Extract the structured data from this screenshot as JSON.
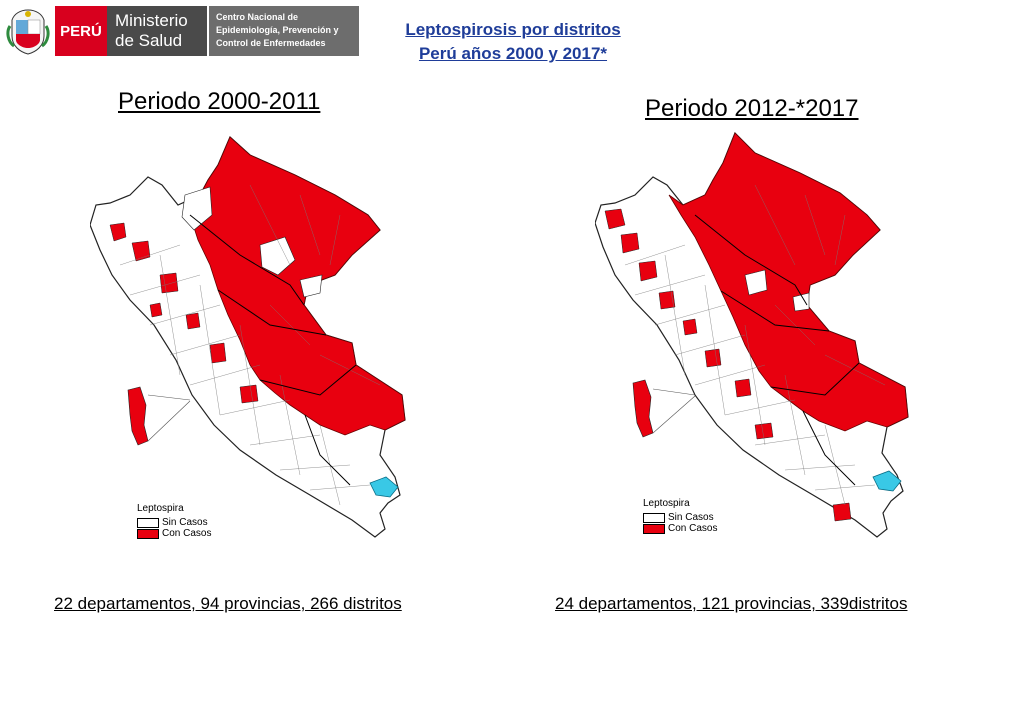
{
  "header": {
    "peru_label": "PERÚ",
    "ministerio_line1": "Ministerio",
    "ministerio_line2": "de Salud",
    "cne_line1": "Centro Nacional de",
    "cne_line2": "Epidemiología, Prevención y",
    "cne_line3": "Control de Enfermedades",
    "coat_text": "REPUBLICA DEL PERU"
  },
  "title": {
    "line1": "Leptospirosis por distritos",
    "line2": "Perú años 2000 y 2017*"
  },
  "colors": {
    "con_casos": "#e8000f",
    "sin_casos": "#ffffff",
    "lake": "#39c8e6",
    "title": "#1f3d99"
  },
  "maps": [
    {
      "period": "Periodo 2000-2011",
      "stats": "22 departamentos, 94 provincias, 266 distritos",
      "legend": {
        "title": "Leptospira",
        "sin": "Sin Casos",
        "con": "Con Casos"
      }
    },
    {
      "period": "Periodo 2012-*2017",
      "stats": "24 departamentos, 121 provincias, 339distritos",
      "legend": {
        "title": "Leptospira",
        "sin": "Sin Casos",
        "con": "Con Casos"
      }
    }
  ]
}
